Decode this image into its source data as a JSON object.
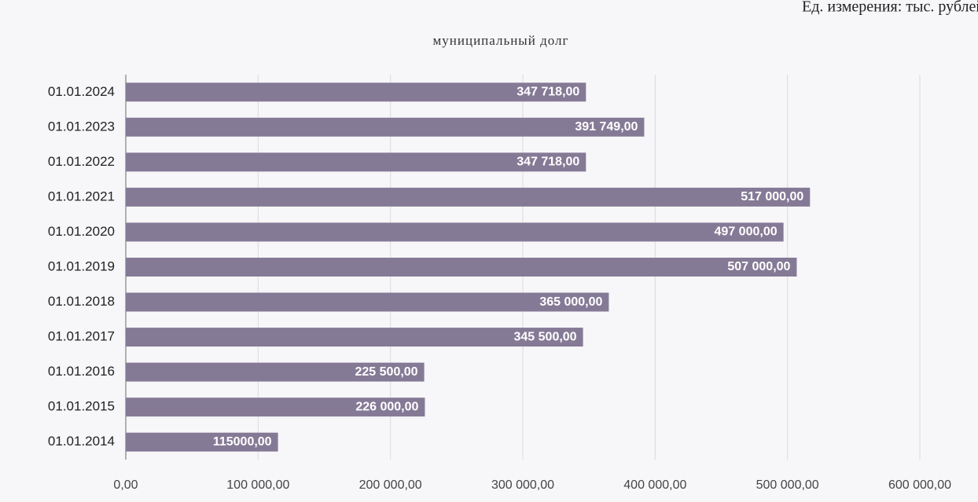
{
  "chart_data": {
    "type": "bar",
    "orientation": "horizontal",
    "title": "муниципальный долг",
    "subtitle": "Ед. измерения: тыс. рублей",
    "categories": [
      "01.01.2024",
      "01.01.2023",
      "01.01.2022",
      "01.01.2021",
      "01.01.2020",
      "01.01.2019",
      "01.01.2018",
      "01.01.2017",
      "01.01.2016",
      "01.01.2015",
      "01.01.2014"
    ],
    "values": [
      347718,
      391749,
      347718,
      517000,
      497000,
      507000,
      365000,
      345500,
      225500,
      226000,
      115000
    ],
    "value_labels": [
      "347 718,00",
      "391 749,00",
      "347 718,00",
      "517 000,00",
      "497 000,00",
      "507 000,00",
      "365 000,00",
      "345 500,00",
      "225 500,00",
      "226 000,00",
      "115000,00"
    ],
    "color": "#857a96",
    "xlim": [
      0,
      600000
    ],
    "xticks": [
      {
        "value": 0,
        "label": "0,00"
      },
      {
        "value": 100000,
        "label": "100 000,00"
      },
      {
        "value": 200000,
        "label": "200 000,00"
      },
      {
        "value": 300000,
        "label": "300 000,00"
      },
      {
        "value": 400000,
        "label": "400 000,00"
      },
      {
        "value": 500000,
        "label": "500 000,00"
      },
      {
        "value": 600000,
        "label": "600 000,00"
      }
    ],
    "grid": true
  }
}
